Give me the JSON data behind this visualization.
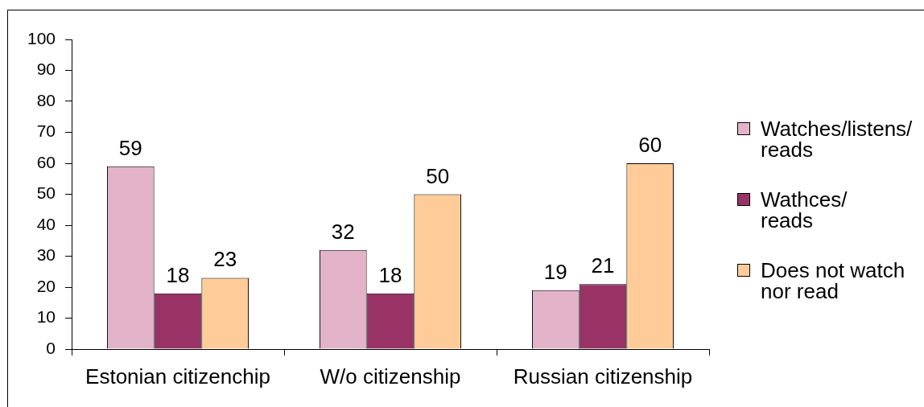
{
  "chart_data": {
    "type": "bar",
    "categories": [
      "Estonian citizenchip",
      "W/o citizenship",
      "Russian citizenship"
    ],
    "series": [
      {
        "name": "Watches/listens/\nreads",
        "color": "#e3b3c9",
        "values": [
          59,
          32,
          19
        ]
      },
      {
        "name": "Wathces/\nreads",
        "color": "#993366",
        "values": [
          18,
          18,
          21
        ]
      },
      {
        "name": "Does not watch\nnor read",
        "color": "#ffcc99",
        "values": [
          23,
          50,
          60
        ]
      }
    ],
    "ylim": [
      0,
      100
    ],
    "yticks": [
      0,
      10,
      20,
      30,
      40,
      50,
      60,
      70,
      80,
      90,
      100
    ],
    "data_labels": true,
    "grid": false,
    "legend": "right"
  }
}
